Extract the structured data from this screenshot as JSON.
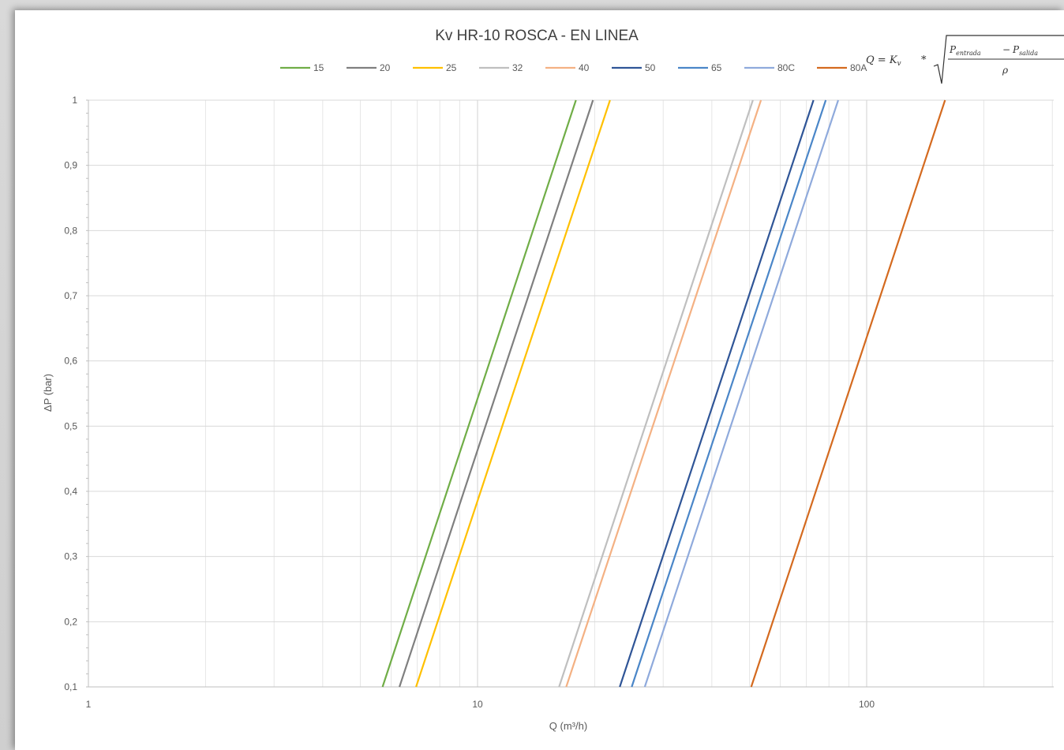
{
  "chart_data": {
    "type": "line",
    "title": "Kv HR-10 ROSCA - EN LINEA",
    "xlabel": "Q (m³/h)",
    "ylabel": "ΔP (bar)",
    "x_scale": "log",
    "xlim": [
      1,
      300
    ],
    "ylim": [
      0.1,
      1
    ],
    "x_ticks": [
      {
        "value": 1,
        "label": "1"
      },
      {
        "value": 10,
        "label": "10"
      },
      {
        "value": 100,
        "label": "100"
      }
    ],
    "y_ticks": [
      {
        "value": 0.1,
        "label": "0,1"
      },
      {
        "value": 0.2,
        "label": "0,2"
      },
      {
        "value": 0.3,
        "label": "0,3"
      },
      {
        "value": 0.4,
        "label": "0,4"
      },
      {
        "value": 0.5,
        "label": "0,5"
      },
      {
        "value": 0.6,
        "label": "0,6"
      },
      {
        "value": 0.7,
        "label": "0,7"
      },
      {
        "value": 0.8,
        "label": "0,8"
      },
      {
        "value": 0.9,
        "label": "0,9"
      },
      {
        "value": 1,
        "label": "1"
      }
    ],
    "grid": true,
    "legend_position": "top",
    "formula": {
      "lhs": "Q = K",
      "lhs_sub": "v",
      "op": "*",
      "numerator_a": "P",
      "numerator_a_sub": "entrada",
      "minus": "−",
      "numerator_b": "P",
      "numerator_b_sub": "salida",
      "denominator": "ρ"
    },
    "series": [
      {
        "name": "15",
        "color": "#70ad47",
        "x": [
          5.7,
          17.9
        ]
      },
      {
        "name": "20",
        "color": "#7f7f7f",
        "x": [
          6.3,
          19.8
        ]
      },
      {
        "name": "25",
        "color": "#ffc000",
        "x": [
          6.95,
          21.9
        ]
      },
      {
        "name": "32",
        "color": "#bfbfbf",
        "x": [
          16.2,
          51.0
        ]
      },
      {
        "name": "40",
        "color": "#f4b183",
        "x": [
          16.9,
          53.5
        ]
      },
      {
        "name": "50",
        "color": "#2f5597",
        "x": [
          23.2,
          73.0
        ]
      },
      {
        "name": "65",
        "color": "#4a86c8",
        "x": [
          24.9,
          78.5
        ]
      },
      {
        "name": "80C",
        "color": "#8faadc",
        "x": [
          26.9,
          84.5
        ]
      },
      {
        "name": "80A",
        "color": "#d46a1f",
        "x": [
          50.5,
          159.0
        ]
      }
    ],
    "series_y": [
      0.1,
      1
    ]
  }
}
